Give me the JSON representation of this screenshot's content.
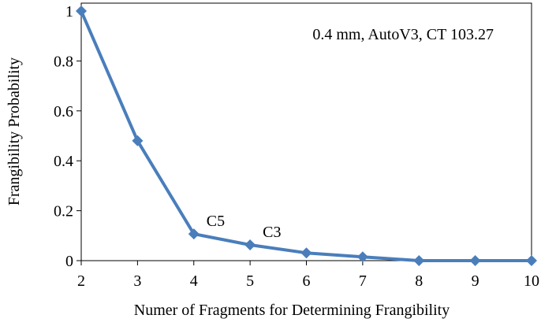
{
  "chart_data": {
    "type": "line",
    "xlabel": "Numer of Fragments for Determining Frangibility",
    "ylabel": "Frangibility Probability",
    "annotation": "0.4 mm,  AutoV3,  CT 103.27",
    "x": [
      2,
      3,
      4,
      5,
      6,
      7,
      8,
      9,
      10
    ],
    "series": [
      {
        "values": [
          1.0,
          0.48,
          0.107,
          0.063,
          0.031,
          0.015,
          0.0,
          0.0,
          0.0
        ]
      }
    ],
    "xlim": [
      2,
      10
    ],
    "ylim": [
      0,
      1
    ],
    "x_ticks": [
      "2",
      "3",
      "4",
      "5",
      "6",
      "7",
      "8",
      "9",
      "10"
    ],
    "y_ticks": [
      "0",
      "0.2",
      "0.4",
      "0.6",
      "0.8",
      "1"
    ],
    "point_labels": [
      {
        "x": 4,
        "text": "C5"
      },
      {
        "x": 5,
        "text": "C3"
      }
    ],
    "series_color": "#4a7ebb",
    "grid": false,
    "legend": "none"
  }
}
